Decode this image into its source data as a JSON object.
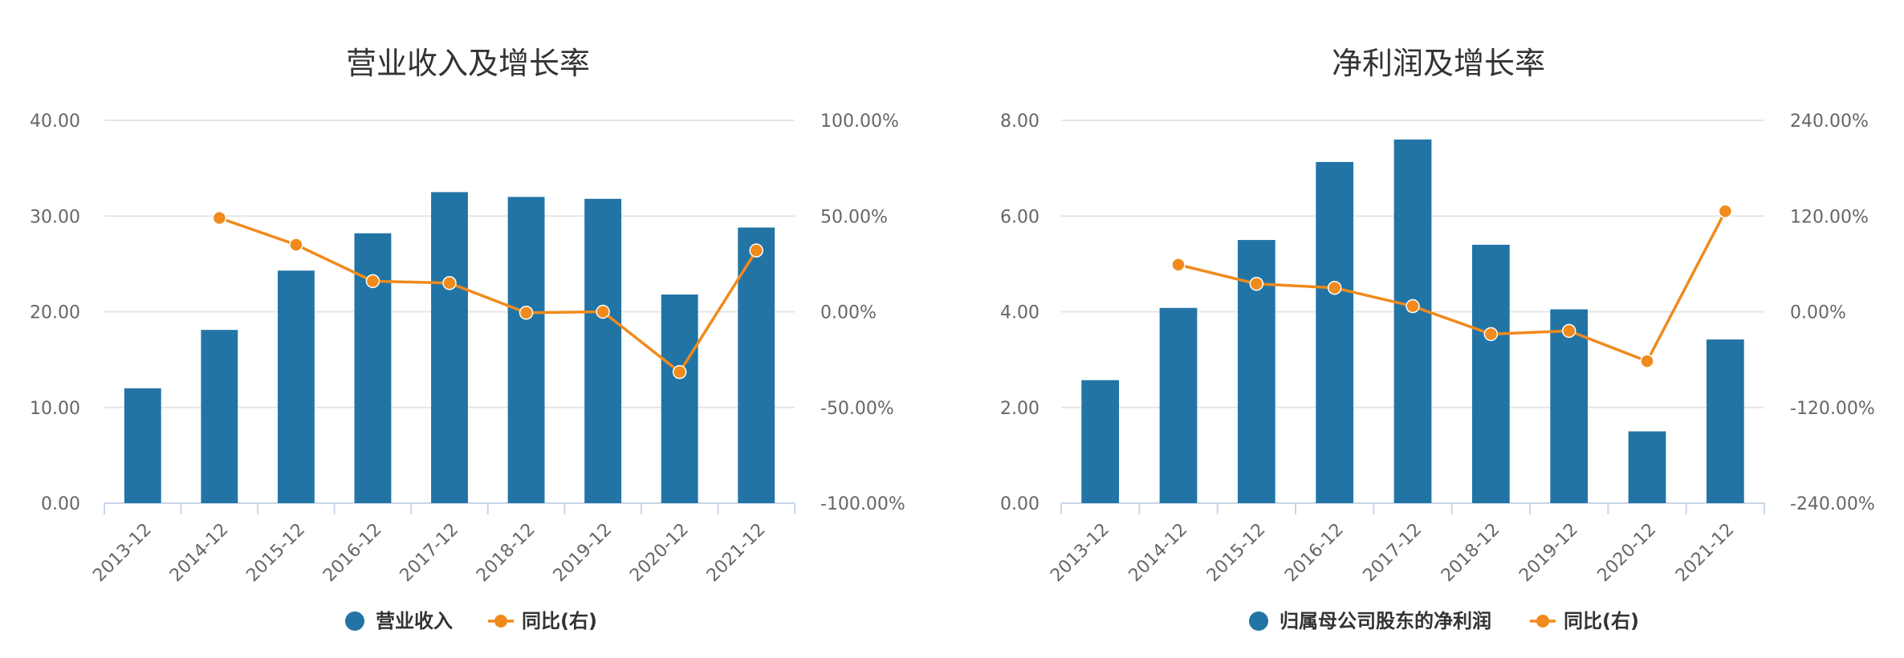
{
  "chart_data": [
    {
      "type": "bar+line",
      "title": "营业收入及增长率",
      "categories": [
        "2013-12",
        "2014-12",
        "2015-12",
        "2016-12",
        "2017-12",
        "2018-12",
        "2019-12",
        "2020-12",
        "2021-12"
      ],
      "series": [
        {
          "name": "营业收入",
          "type": "bar",
          "axis": "left",
          "values": [
            12.0,
            18.1,
            24.3,
            28.2,
            32.5,
            32.0,
            31.8,
            21.8,
            28.8
          ]
        },
        {
          "name": "同比(右)",
          "type": "line",
          "axis": "right",
          "values": [
            null,
            49.0,
            35.0,
            16.0,
            15.0,
            -0.5,
            0.0,
            -31.5,
            32.0
          ]
        }
      ],
      "yleft": {
        "min": 0,
        "max": 40,
        "ticks": [
          "40.00",
          "30.00",
          "20.00",
          "10.00",
          "0.00"
        ]
      },
      "yright": {
        "min": -100,
        "max": 100,
        "ticks": [
          "100.00%",
          "50.00%",
          "0.00%",
          "-50.00%",
          "-100.00%"
        ]
      },
      "legend": [
        "营业收入",
        "同比(右)"
      ],
      "legend_position": "bottom",
      "grid": true
    },
    {
      "type": "bar+line",
      "title": "净利润及增长率",
      "categories": [
        "2013-12",
        "2014-12",
        "2015-12",
        "2016-12",
        "2017-12",
        "2018-12",
        "2019-12",
        "2020-12",
        "2021-12"
      ],
      "series": [
        {
          "name": "归属母公司股东的净利润",
          "type": "bar",
          "axis": "left",
          "values": [
            2.57,
            4.08,
            5.5,
            7.13,
            7.6,
            5.4,
            4.05,
            1.5,
            3.42
          ]
        },
        {
          "name": "同比(右)",
          "type": "line",
          "axis": "right",
          "values": [
            null,
            59.0,
            35.0,
            30.0,
            7.0,
            -28.0,
            -24.0,
            -62.0,
            126.0
          ]
        }
      ],
      "yleft": {
        "min": 0,
        "max": 8,
        "ticks": [
          "8.00",
          "6.00",
          "4.00",
          "2.00",
          "0.00"
        ]
      },
      "yright": {
        "min": -240,
        "max": 240,
        "ticks": [
          "240.00%",
          "120.00%",
          "0.00%",
          "-120.00%",
          "-240.00%"
        ]
      },
      "legend": [
        "归属母公司股东的净利润",
        "同比(右)"
      ],
      "legend_position": "bottom",
      "grid": true
    }
  ],
  "colors": {
    "bar": "#2274a5",
    "line": "#f08a1c",
    "grid": "#e6e6e6",
    "axis": "#c9d6e8"
  }
}
